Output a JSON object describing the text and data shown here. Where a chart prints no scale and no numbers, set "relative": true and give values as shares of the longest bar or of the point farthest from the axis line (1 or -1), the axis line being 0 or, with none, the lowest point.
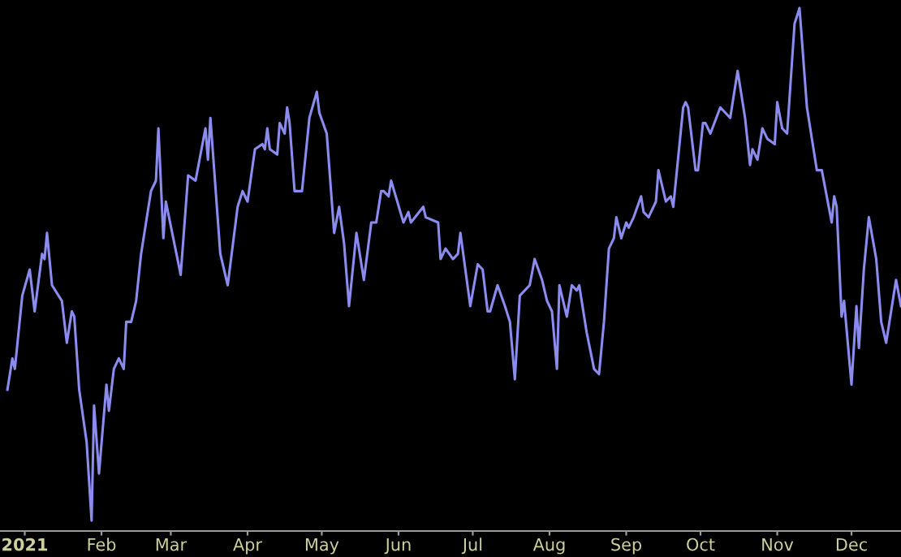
{
  "chart_data": {
    "type": "line",
    "relative": true,
    "x": [
      "2020-12-25",
      "2020-12-27",
      "2020-12-28",
      "2020-12-31",
      "2021-01-03",
      "2021-01-05",
      "2021-01-08",
      "2021-01-09",
      "2021-01-10",
      "2021-01-12",
      "2021-01-16",
      "2021-01-18",
      "2021-01-20",
      "2021-01-21",
      "2021-01-23",
      "2021-01-26",
      "2021-01-28",
      "2021-01-29",
      "2021-01-31",
      "2021-02-03",
      "2021-02-04",
      "2021-02-06",
      "2021-02-08",
      "2021-02-10",
      "2021-02-11",
      "2021-02-13",
      "2021-02-15",
      "2021-02-17",
      "2021-02-21",
      "2021-02-23",
      "2021-02-24",
      "2021-02-26",
      "2021-02-27",
      "2021-03-02",
      "2021-03-05",
      "2021-03-08",
      "2021-03-11",
      "2021-03-15",
      "2021-03-16",
      "2021-03-17",
      "2021-03-21",
      "2021-03-24",
      "2021-03-28",
      "2021-03-30",
      "2021-04-01",
      "2021-04-04",
      "2021-04-07",
      "2021-04-08",
      "2021-04-09",
      "2021-04-10",
      "2021-04-13",
      "2021-04-14",
      "2021-04-16",
      "2021-04-17",
      "2021-04-18",
      "2021-04-20",
      "2021-04-23",
      "2021-04-26",
      "2021-04-29",
      "2021-04-30",
      "2021-05-03",
      "2021-05-06",
      "2021-05-08",
      "2021-05-10",
      "2021-05-12",
      "2021-05-15",
      "2021-05-18",
      "2021-05-21",
      "2021-05-23",
      "2021-05-25",
      "2021-05-26",
      "2021-05-28",
      "2021-05-29",
      "2021-06-03",
      "2021-06-05",
      "2021-06-06",
      "2021-06-11",
      "2021-06-12",
      "2021-06-17",
      "2021-06-18",
      "2021-06-20",
      "2021-06-23",
      "2021-06-25",
      "2021-06-26",
      "2021-06-30",
      "2021-07-03",
      "2021-07-05",
      "2021-07-07",
      "2021-07-08",
      "2021-07-11",
      "2021-07-14",
      "2021-07-16",
      "2021-07-18",
      "2021-07-20",
      "2021-07-24",
      "2021-07-26",
      "2021-07-29",
      "2021-07-31",
      "2021-08-02",
      "2021-08-04",
      "2021-08-05",
      "2021-08-08",
      "2021-08-10",
      "2021-08-12",
      "2021-08-13",
      "2021-08-16",
      "2021-08-19",
      "2021-08-21",
      "2021-08-23",
      "2021-08-25",
      "2021-08-27",
      "2021-08-28",
      "2021-08-30",
      "2021-09-01",
      "2021-09-02",
      "2021-09-04",
      "2021-09-07",
      "2021-09-08",
      "2021-09-10",
      "2021-09-13",
      "2021-09-14",
      "2021-09-17",
      "2021-09-19",
      "2021-09-20",
      "2021-09-24",
      "2021-09-25",
      "2021-09-26",
      "2021-09-29",
      "2021-09-30",
      "2021-10-02",
      "2021-10-03",
      "2021-10-05",
      "2021-10-09",
      "2021-10-13",
      "2021-10-16",
      "2021-10-19",
      "2021-10-21",
      "2021-10-22",
      "2021-10-24",
      "2021-10-26",
      "2021-10-28",
      "2021-10-31",
      "2021-11-01",
      "2021-11-03",
      "2021-11-05",
      "2021-11-08",
      "2021-11-10",
      "2021-11-13",
      "2021-11-14",
      "2021-11-17",
      "2021-11-19",
      "2021-11-23",
      "2021-11-24",
      "2021-11-25",
      "2021-11-27",
      "2021-11-28",
      "2021-12-01",
      "2021-12-03",
      "2021-12-04",
      "2021-12-06",
      "2021-12-08",
      "2021-12-11",
      "2021-12-13",
      "2021-12-15",
      "2021-12-17",
      "2021-12-19",
      "2021-12-21"
    ],
    "series": [
      {
        "color": "#8c8cf0",
        "values": [
          0.27,
          0.33,
          0.31,
          0.45,
          0.5,
          0.42,
          0.53,
          0.52,
          0.57,
          0.47,
          0.44,
          0.36,
          0.42,
          0.41,
          0.27,
          0.17,
          0.02,
          0.24,
          0.11,
          0.28,
          0.23,
          0.31,
          0.33,
          0.31,
          0.4,
          0.4,
          0.44,
          0.53,
          0.65,
          0.67,
          0.77,
          0.56,
          0.63,
          0.56,
          0.49,
          0.68,
          0.67,
          0.77,
          0.71,
          0.79,
          0.53,
          0.47,
          0.62,
          0.65,
          0.63,
          0.73,
          0.74,
          0.73,
          0.77,
          0.73,
          0.72,
          0.78,
          0.76,
          0.81,
          0.78,
          0.65,
          0.65,
          0.79,
          0.84,
          0.8,
          0.76,
          0.57,
          0.62,
          0.55,
          0.43,
          0.57,
          0.48,
          0.59,
          0.59,
          0.65,
          0.65,
          0.64,
          0.67,
          0.59,
          0.61,
          0.59,
          0.62,
          0.6,
          0.59,
          0.52,
          0.54,
          0.52,
          0.53,
          0.57,
          0.43,
          0.51,
          0.5,
          0.42,
          0.42,
          0.47,
          0.43,
          0.4,
          0.29,
          0.45,
          0.47,
          0.52,
          0.48,
          0.44,
          0.42,
          0.31,
          0.47,
          0.41,
          0.47,
          0.46,
          0.47,
          0.38,
          0.31,
          0.3,
          0.4,
          0.54,
          0.56,
          0.6,
          0.56,
          0.59,
          0.58,
          0.6,
          0.64,
          0.61,
          0.6,
          0.63,
          0.69,
          0.63,
          0.64,
          0.62,
          0.81,
          0.82,
          0.81,
          0.69,
          0.69,
          0.78,
          0.78,
          0.76,
          0.81,
          0.79,
          0.88,
          0.79,
          0.7,
          0.73,
          0.71,
          0.77,
          0.75,
          0.74,
          0.82,
          0.77,
          0.76,
          0.97,
          1.0,
          0.81,
          0.78,
          0.69,
          0.69,
          0.59,
          0.64,
          0.62,
          0.41,
          0.44,
          0.28,
          0.43,
          0.35,
          0.5,
          0.6,
          0.52,
          0.4,
          0.36,
          0.42,
          0.48,
          0.43
        ]
      }
    ],
    "xlim": [
      "2020-12-22",
      "2021-12-21"
    ],
    "xticks": [
      {
        "value": "2021-01-01",
        "label": "2021"
      },
      {
        "value": "2021-02-01",
        "label": "Feb"
      },
      {
        "value": "2021-03-01",
        "label": "Mar"
      },
      {
        "value": "2021-04-01",
        "label": "Apr"
      },
      {
        "value": "2021-05-01",
        "label": "May"
      },
      {
        "value": "2021-06-01",
        "label": "Jun"
      },
      {
        "value": "2021-07-01",
        "label": "Jul"
      },
      {
        "value": "2021-08-01",
        "label": "Aug"
      },
      {
        "value": "2021-09-01",
        "label": "Sep"
      },
      {
        "value": "2021-10-01",
        "label": "Oct"
      },
      {
        "value": "2021-11-01",
        "label": "Nov"
      },
      {
        "value": "2021-12-01",
        "label": "Dec"
      }
    ],
    "tick_labels": "x",
    "grid": false,
    "legend": false,
    "marker": "none",
    "line_style": "solid"
  }
}
